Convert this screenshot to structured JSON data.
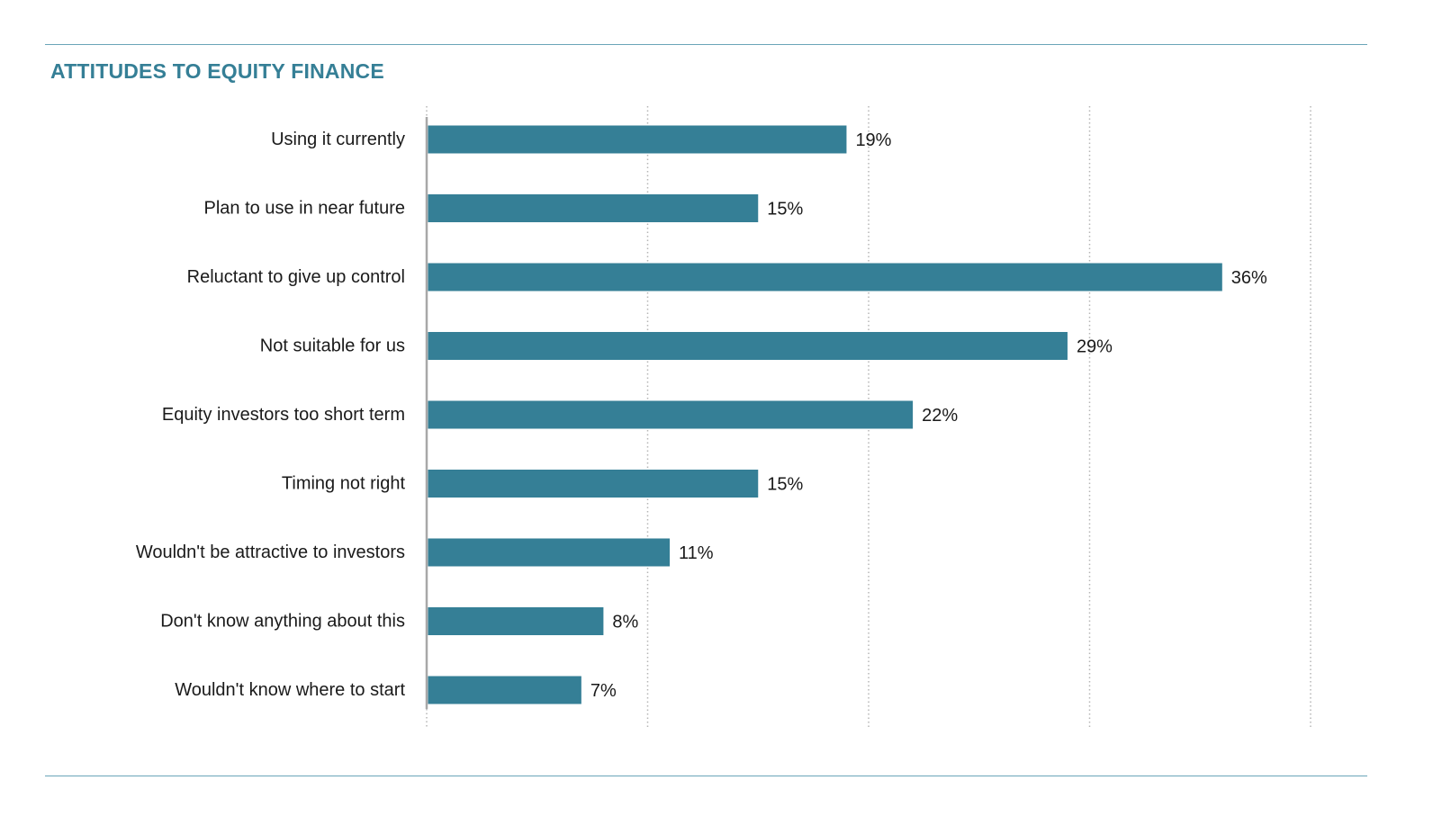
{
  "chart_data": {
    "type": "bar",
    "orientation": "horizontal",
    "title": "ATTITUDES TO EQUITY FINANCE",
    "categories": [
      "Using it currently",
      "Plan to use in near future",
      "Reluctant to give up control",
      "Not suitable for us",
      "Equity investors too short term",
      "Timing not right",
      "Wouldn't be attractive to investors",
      "Don't know anything about this",
      "Wouldn't know where to start"
    ],
    "values": [
      19,
      15,
      36,
      29,
      22,
      15,
      11,
      8,
      7
    ],
    "value_labels": [
      "19%",
      "15%",
      "36%",
      "29%",
      "22%",
      "15%",
      "11%",
      "8%",
      "7%"
    ],
    "xlim": [
      0,
      40
    ],
    "gridlines": [
      10,
      20,
      30,
      40
    ],
    "grid": "dotted vertical",
    "legend": "none",
    "colors": {
      "bar": "#357f96",
      "title": "#357f96",
      "rule": "#6aa5b8",
      "axis": "#a8a8a8",
      "grid": "#b5b5b5"
    }
  }
}
